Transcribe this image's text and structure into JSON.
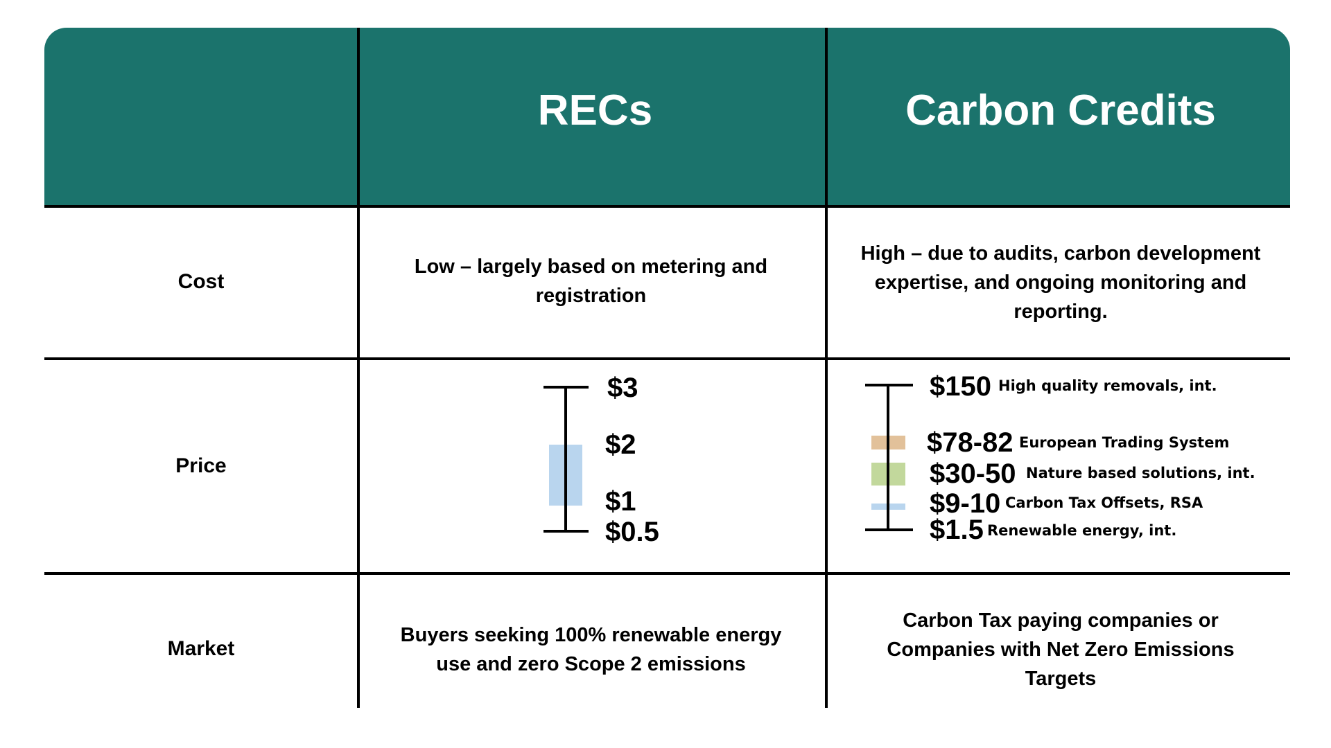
{
  "header": {
    "col1_title": "RECs",
    "col2_title": "Carbon Credits"
  },
  "rows": {
    "cost": {
      "label": "Cost",
      "recs_line1": "Low – largely based on metering and",
      "recs_line2": "registration",
      "carbon_line1": "High – due to audits, carbon development",
      "carbon_line2": "expertise, and ongoing monitoring and",
      "carbon_line3": "reporting."
    },
    "price": {
      "label": "Price",
      "recs": {
        "high": "$3",
        "mid_high": "$2",
        "mid_low": "$1",
        "low": "$0.5",
        "band_color": "#b9d5ee"
      },
      "carbon": [
        {
          "price": "$150",
          "desc": "High quality removals, int."
        },
        {
          "price": "$78-82",
          "desc": "European Trading System",
          "color": "#e2c19a"
        },
        {
          "price": "$30-50",
          "desc": "Nature based solutions, int.",
          "color": "#c2d89c"
        },
        {
          "price": "$9-10",
          "desc": "Carbon Tax Offsets, RSA",
          "color": "#b9d5ee"
        },
        {
          "price": "$1.5",
          "desc": "Renewable energy, int."
        }
      ]
    },
    "market": {
      "label": "Market",
      "recs_line1": "Buyers seeking 100% renewable energy",
      "recs_line2": "use and zero Scope 2 emissions",
      "carbon_line1": "Carbon Tax paying companies or",
      "carbon_line2": "Companies with Net Zero Emissions",
      "carbon_line3": "Targets"
    }
  },
  "colors": {
    "header_bg": "#1b736c",
    "header_text": "#ffffff",
    "grid": "#000000"
  }
}
